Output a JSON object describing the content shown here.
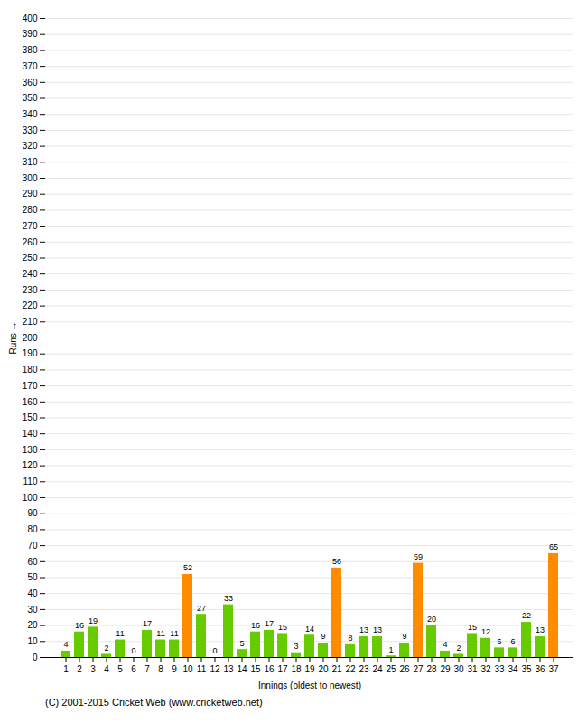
{
  "chart_data": {
    "type": "bar",
    "xlabel": "Innings (oldest to newest)",
    "ylabel": "Runs",
    "categories": [
      "1",
      "2",
      "3",
      "4",
      "5",
      "6",
      "7",
      "8",
      "9",
      "10",
      "11",
      "12",
      "13",
      "14",
      "15",
      "16",
      "17",
      "18",
      "19",
      "20",
      "21",
      "22",
      "23",
      "24",
      "25",
      "26",
      "27",
      "28",
      "29",
      "30",
      "31",
      "32",
      "33",
      "34",
      "35",
      "36",
      "37"
    ],
    "values": [
      4,
      16,
      19,
      2,
      11,
      0,
      17,
      11,
      11,
      52,
      27,
      0,
      33,
      5,
      16,
      17,
      15,
      3,
      14,
      9,
      56,
      8,
      13,
      13,
      1,
      9,
      59,
      20,
      4,
      2,
      15,
      12,
      6,
      6,
      22,
      13,
      65
    ],
    "colors": [
      "#66cc00",
      "#66cc00",
      "#66cc00",
      "#66cc00",
      "#66cc00",
      "#66cc00",
      "#66cc00",
      "#66cc00",
      "#66cc00",
      "#ff8c00",
      "#66cc00",
      "#66cc00",
      "#66cc00",
      "#66cc00",
      "#66cc00",
      "#66cc00",
      "#66cc00",
      "#66cc00",
      "#66cc00",
      "#66cc00",
      "#ff8c00",
      "#66cc00",
      "#66cc00",
      "#66cc00",
      "#66cc00",
      "#66cc00",
      "#ff8c00",
      "#66cc00",
      "#66cc00",
      "#66cc00",
      "#66cc00",
      "#66cc00",
      "#66cc00",
      "#66cc00",
      "#66cc00",
      "#66cc00",
      "#ff8c00"
    ],
    "ylim": [
      0,
      400
    ],
    "yticks": [
      0,
      10,
      20,
      30,
      40,
      50,
      60,
      70,
      80,
      90,
      100,
      110,
      120,
      130,
      140,
      150,
      160,
      170,
      180,
      190,
      200,
      210,
      220,
      230,
      240,
      250,
      260,
      270,
      280,
      290,
      300,
      310,
      320,
      330,
      340,
      350,
      360,
      370,
      380,
      390,
      400
    ],
    "grid": true,
    "data_labels": true,
    "annotations": [
      "(C) 2001-2015 Cricket Web (www.cricketweb.net)"
    ]
  }
}
